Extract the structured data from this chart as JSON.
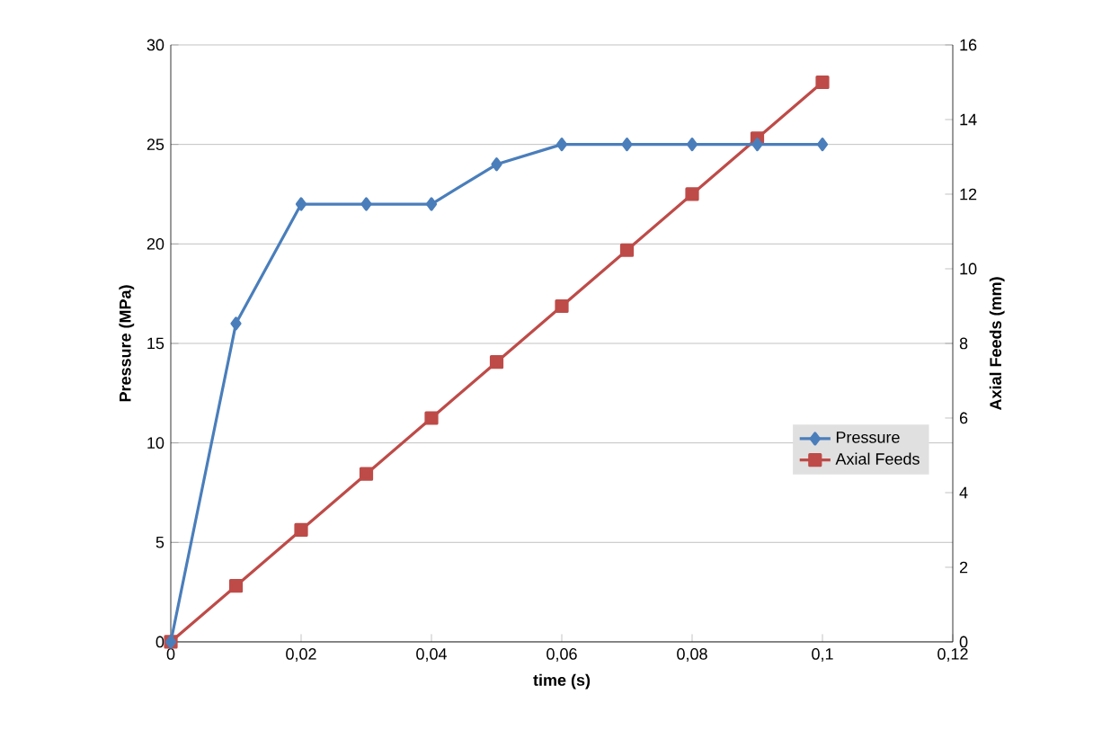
{
  "chart_data": {
    "type": "line",
    "xlabel": "time (s)",
    "ylabel": "Pressure (MPa)",
    "y2label": "Axial Feeds (mm)",
    "x": [
      0,
      0.01,
      0.02,
      0.03,
      0.04,
      0.05,
      0.06,
      0.07,
      0.08,
      0.09,
      0.1
    ],
    "series": [
      {
        "name": "Pressure",
        "color": "#4a7ebb",
        "marker": "diamond",
        "values": [
          0,
          16,
          22,
          22,
          22,
          24,
          25,
          25,
          25,
          25,
          25
        ]
      },
      {
        "name": "Axial Feeds",
        "color": "#be4b48",
        "marker": "square",
        "axis": "y2",
        "values": [
          0,
          1.5,
          3,
          4.5,
          6,
          7.5,
          9,
          10.5,
          12,
          13.5,
          15
        ]
      }
    ],
    "xlim": [
      0,
      0.12
    ],
    "xticks": [
      0,
      {
        "value": 0.02,
        "label": "0,02"
      },
      {
        "value": 0.04,
        "label": "0,04"
      },
      {
        "value": 0.06,
        "label": "0,06"
      },
      {
        "value": 0.08,
        "label": "0,08"
      },
      {
        "value": 0.1,
        "label": "0,1"
      },
      {
        "value": 0.12,
        "label": "0,12"
      }
    ],
    "ylim": [
      0,
      30
    ],
    "yticks": [
      0,
      5,
      10,
      15,
      20,
      25,
      30
    ],
    "y2lim": [
      0,
      16
    ],
    "y2ticks": [
      0,
      2,
      4,
      6,
      8,
      10,
      12,
      14,
      16
    ],
    "grid": "y",
    "legend": "center right"
  }
}
